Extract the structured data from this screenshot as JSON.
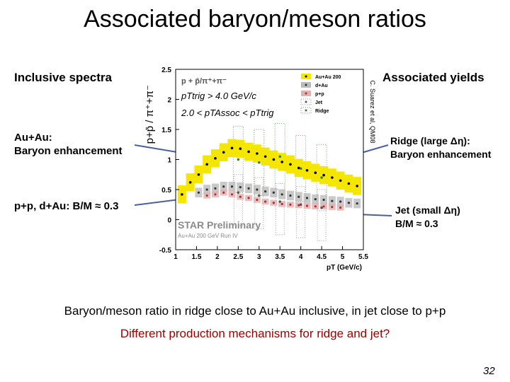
{
  "slide": {
    "title": "Associated baryon/meson ratios",
    "inclusive_label": "Inclusive spectra",
    "associated_label": "Associated yields",
    "auau_line1": "Au+Au:",
    "auau_line2": "Baryon enhancement",
    "ppda": "p+p, d+Au: B/M ≈ 0.3",
    "ridge_line1": "Ridge (large Δη):",
    "ridge_line2": "Baryon enhancement",
    "jet_line1": "Jet (small Δη)",
    "jet_line2": "B/M ≈ 0.3",
    "conclusion": "Baryon/meson ratio in ridge close to Au+Au inclusive, in jet close to p+p",
    "question": "Different production mechanisms for ridge and jet?",
    "page_number": "32",
    "question_color": "#990000"
  },
  "chart_data": {
    "type": "scatter",
    "title": "p + p̄/π⁺+π⁻",
    "cut1": "pTtrig > 4.0 GeV/c",
    "cut2": "2.0 < pTAssoc < pTtrig",
    "ylabel": "p+p̄ / π⁺+π⁻",
    "xlabel": "pT (GeV/c)",
    "xlim": [
      1,
      5.5
    ],
    "ylim": [
      -0.5,
      2.5
    ],
    "xticks": [
      "1",
      "1.5",
      "2",
      "2.5",
      "3",
      "3.5",
      "4",
      "4.5",
      "5",
      "5.5"
    ],
    "yticks": [
      "-0.5",
      "0",
      "0.5",
      "1",
      "1.5",
      "2",
      "2.5"
    ],
    "watermark": "STAR Preliminary",
    "watermark_sub": "Au+Au 200 GeV Run IV",
    "credit": "C. Suarez et al, QM08",
    "legend_position": "top-right",
    "legend": [
      "Au+Au 200",
      "d+Au",
      "p+p",
      "Jet",
      "Ridge"
    ],
    "colors": {
      "auau": "#f5e600",
      "dau": "#888888",
      "pp": "#d08080",
      "jet": "#888888",
      "ridge": "#6aa66a"
    },
    "series": [
      {
        "name": "Au+Au 200",
        "x": [
          1.15,
          1.35,
          1.55,
          1.75,
          1.95,
          2.15,
          2.35,
          2.55,
          2.75,
          2.95,
          3.15,
          3.35,
          3.55,
          3.75,
          3.95,
          4.15,
          4.35,
          4.55,
          4.75,
          4.95,
          5.15,
          5.35
        ],
        "y": [
          0.42,
          0.62,
          0.75,
          0.92,
          1.02,
          1.12,
          1.19,
          1.18,
          1.13,
          1.1,
          1.05,
          1.0,
          0.96,
          0.92,
          0.86,
          0.82,
          0.78,
          0.74,
          0.7,
          0.65,
          0.6,
          0.56
        ]
      },
      {
        "name": "d+Au",
        "x": [
          1.55,
          1.75,
          1.95,
          2.15,
          2.35,
          2.55,
          2.75,
          2.95,
          3.15,
          3.35,
          3.55,
          3.75,
          3.95,
          4.15,
          4.35,
          4.55,
          4.75,
          4.95,
          5.15,
          5.35
        ],
        "y": [
          0.45,
          0.5,
          0.52,
          0.55,
          0.55,
          0.54,
          0.52,
          0.5,
          0.47,
          0.45,
          0.42,
          0.4,
          0.38,
          0.36,
          0.34,
          0.33,
          0.31,
          0.3,
          0.28,
          0.27
        ]
      },
      {
        "name": "p+p",
        "x": [
          1.75,
          1.95,
          2.15,
          2.35,
          2.55,
          2.75,
          2.95,
          3.15,
          3.35,
          3.55,
          3.75,
          3.95,
          4.15,
          4.35,
          4.55,
          4.75,
          4.95
        ],
        "y": [
          0.4,
          0.42,
          0.45,
          0.42,
          0.38,
          0.36,
          0.33,
          0.3,
          0.28,
          0.26,
          0.25,
          0.24,
          0.23,
          0.22,
          0.22,
          0.21,
          0.2
        ]
      },
      {
        "name": "Jet",
        "x": [
          2.5,
          3.0,
          3.5,
          4.0,
          4.5
        ],
        "y": [
          0.45,
          0.4,
          0.3,
          0.25,
          0.2
        ]
      },
      {
        "name": "Ridge",
        "x": [
          2.5,
          3.0,
          3.5,
          4.0,
          4.5
        ],
        "y": [
          1.0,
          0.95,
          1.05,
          0.85,
          0.7
        ]
      }
    ]
  }
}
